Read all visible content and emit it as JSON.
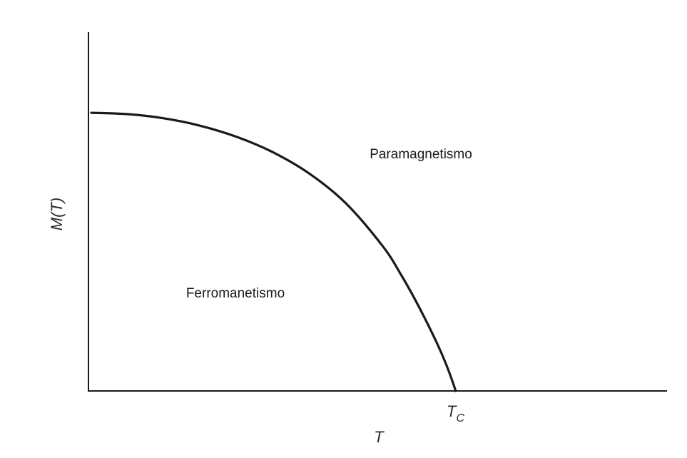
{
  "chart_data": {
    "type": "line",
    "title": "",
    "xlabel": "T",
    "ylabel": "M(T)",
    "grid": false,
    "legend": "none",
    "x_ticks": [
      {
        "value": 1.0,
        "label_main": "T",
        "label_sub": "C"
      }
    ],
    "xlim": [
      0,
      1.58
    ],
    "ylim": [
      0,
      1.29
    ],
    "series": [
      {
        "color": "#1a1a1a",
        "x": [
          0.0,
          0.1,
          0.2,
          0.3,
          0.4,
          0.5,
          0.6,
          0.7,
          0.8,
          0.85,
          0.9,
          0.95,
          0.98,
          1.0
        ],
        "y": [
          1.0,
          0.995,
          0.98,
          0.953,
          0.913,
          0.857,
          0.78,
          0.673,
          0.52,
          0.418,
          0.3,
          0.168,
          0.075,
          0.0
        ]
      }
    ],
    "annotations": [
      {
        "text": "Paramagnetismo",
        "x": 1.05,
        "y": 0.95
      },
      {
        "text": "Ferromanetismo",
        "x": 0.2,
        "y": 0.43
      }
    ]
  }
}
